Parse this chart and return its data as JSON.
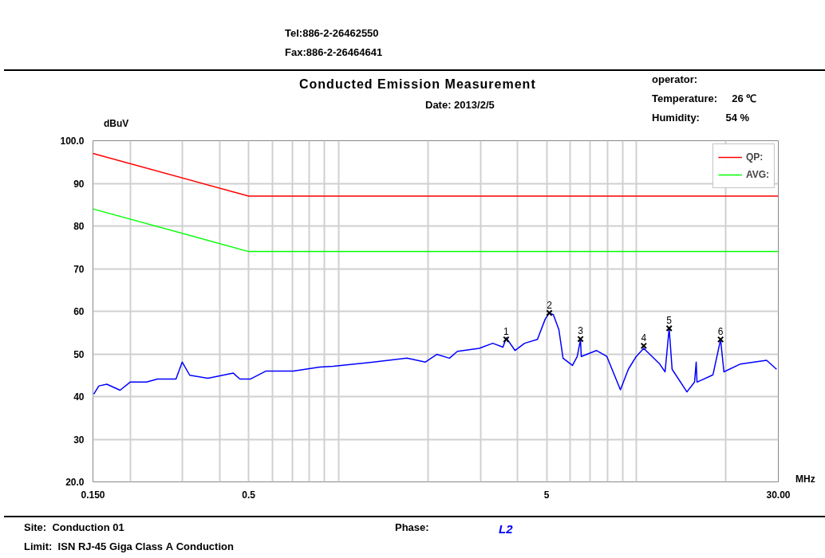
{
  "chart_data": {
    "type": "line",
    "title": "Conducted Emission Measurement",
    "subtitle": "Date: 2013/2/5",
    "xlabel": "MHz",
    "ylabel": "dBuV",
    "log": "x",
    "xlim": [
      0.15,
      30
    ],
    "ylim": [
      20,
      100
    ],
    "xticks": [
      {
        "value": 0.15,
        "label": "0.150"
      },
      {
        "value": 0.2,
        "label": null
      },
      {
        "value": 0.3,
        "label": null
      },
      {
        "value": 0.4,
        "label": null
      },
      0.5,
      {
        "value": 0.6,
        "label": null
      },
      {
        "value": 0.7,
        "label": null
      },
      {
        "value": 0.8,
        "label": null
      },
      {
        "value": 0.9,
        "label": null
      },
      {
        "value": 1,
        "label": null
      },
      {
        "value": 2,
        "label": null
      },
      {
        "value": 3,
        "label": null
      },
      {
        "value": 4,
        "label": null
      },
      5,
      {
        "value": 6,
        "label": null
      },
      {
        "value": 7,
        "label": null
      },
      {
        "value": 8,
        "label": null
      },
      {
        "value": 9,
        "label": null
      },
      {
        "value": 10,
        "label": null
      },
      {
        "value": 20,
        "label": null
      },
      {
        "value": 30,
        "label": "30.00"
      }
    ],
    "yticks": [
      {
        "value": 20,
        "label": "20.0"
      },
      30,
      40,
      50,
      60,
      70,
      80,
      90,
      {
        "value": 100,
        "label": "100.0"
      }
    ],
    "grid": true,
    "legend": "top right",
    "line_style": "solid",
    "series": [
      {
        "color": "#0000ff",
        "x": [
          0.151,
          0.157,
          0.167,
          0.185,
          0.2,
          0.227,
          0.247,
          0.285,
          0.299,
          0.317,
          0.365,
          0.444,
          0.467,
          0.506,
          0.572,
          0.706,
          0.865,
          0.96,
          1.31,
          1.7,
          1.96,
          2.14,
          2.36,
          2.51,
          2.97,
          3.3,
          3.57,
          3.66,
          3.92,
          4.22,
          4.66,
          4.95,
          5.11,
          5.27,
          5.5,
          5.68,
          6.11,
          6.34,
          6.5,
          6.54,
          7.35,
          7.97,
          8.85,
          9.41,
          10.0,
          10.6,
          12.0,
          12.5,
          12.9,
          13.2,
          14.8,
          15.7,
          15.9,
          16.0,
          18.1,
          19.2,
          19.7,
          22.3,
          27.4,
          29.6
        ],
        "values": [
          40.6,
          42.5,
          42.9,
          41.5,
          43.4,
          43.4,
          44.1,
          44.1,
          48.1,
          45.0,
          44.3,
          45.5,
          44.1,
          44.1,
          46.0,
          46.0,
          46.9,
          47.1,
          48.1,
          49.0,
          48.1,
          49.9,
          49.0,
          50.6,
          51.3,
          52.5,
          51.6,
          53.8,
          50.8,
          52.5,
          53.4,
          58.2,
          59.6,
          59.2,
          55.7,
          49.0,
          47.3,
          49.4,
          53.4,
          49.4,
          50.8,
          49.4,
          41.6,
          46.4,
          49.4,
          51.3,
          47.6,
          45.8,
          56.0,
          46.4,
          41.1,
          43.4,
          48.1,
          43.4,
          45.1,
          53.4,
          45.8,
          47.6,
          48.5,
          46.4
        ]
      },
      {
        "type": "line",
        "name": "QP:",
        "color": "#ff0000",
        "x": [
          0.15,
          0.5,
          30
        ],
        "values": [
          97,
          87,
          87
        ]
      },
      {
        "type": "line",
        "name": "AVG:",
        "color": "#00ff00",
        "x": [
          0.15,
          0.5,
          30
        ],
        "values": [
          84,
          74,
          74
        ]
      },
      {
        "type": "scatter",
        "marker": "cross",
        "color": "#000000",
        "x": [
          3.66,
          5.11,
          6.5,
          10.6,
          12.9,
          19.2
        ],
        "values": [
          53.4,
          59.6,
          53.5,
          51.9,
          56.0,
          53.4
        ]
      }
    ],
    "annotations": [
      "Tel:886-2-26462550",
      "Fax:886-2-26464641",
      "operator:",
      "Temperature:     26 ℃",
      "Humidity:         54 %",
      "Site:  Conduction 01",
      "Phase:",
      "L2",
      "Limit:  ISN RJ-45 Giga Class A Conduction",
      {
        "text": "1",
        "x": 3.66,
        "y": 53.4
      },
      {
        "text": "2",
        "x": 5.11,
        "y": 59.6
      },
      {
        "text": "3",
        "x": 6.5,
        "y": 53.5
      },
      {
        "text": "4",
        "x": 10.6,
        "y": 51.9
      },
      {
        "text": "5",
        "x": 12.9,
        "y": 56.0
      },
      {
        "text": "6",
        "x": 19.2,
        "y": 53.4
      }
    ]
  }
}
